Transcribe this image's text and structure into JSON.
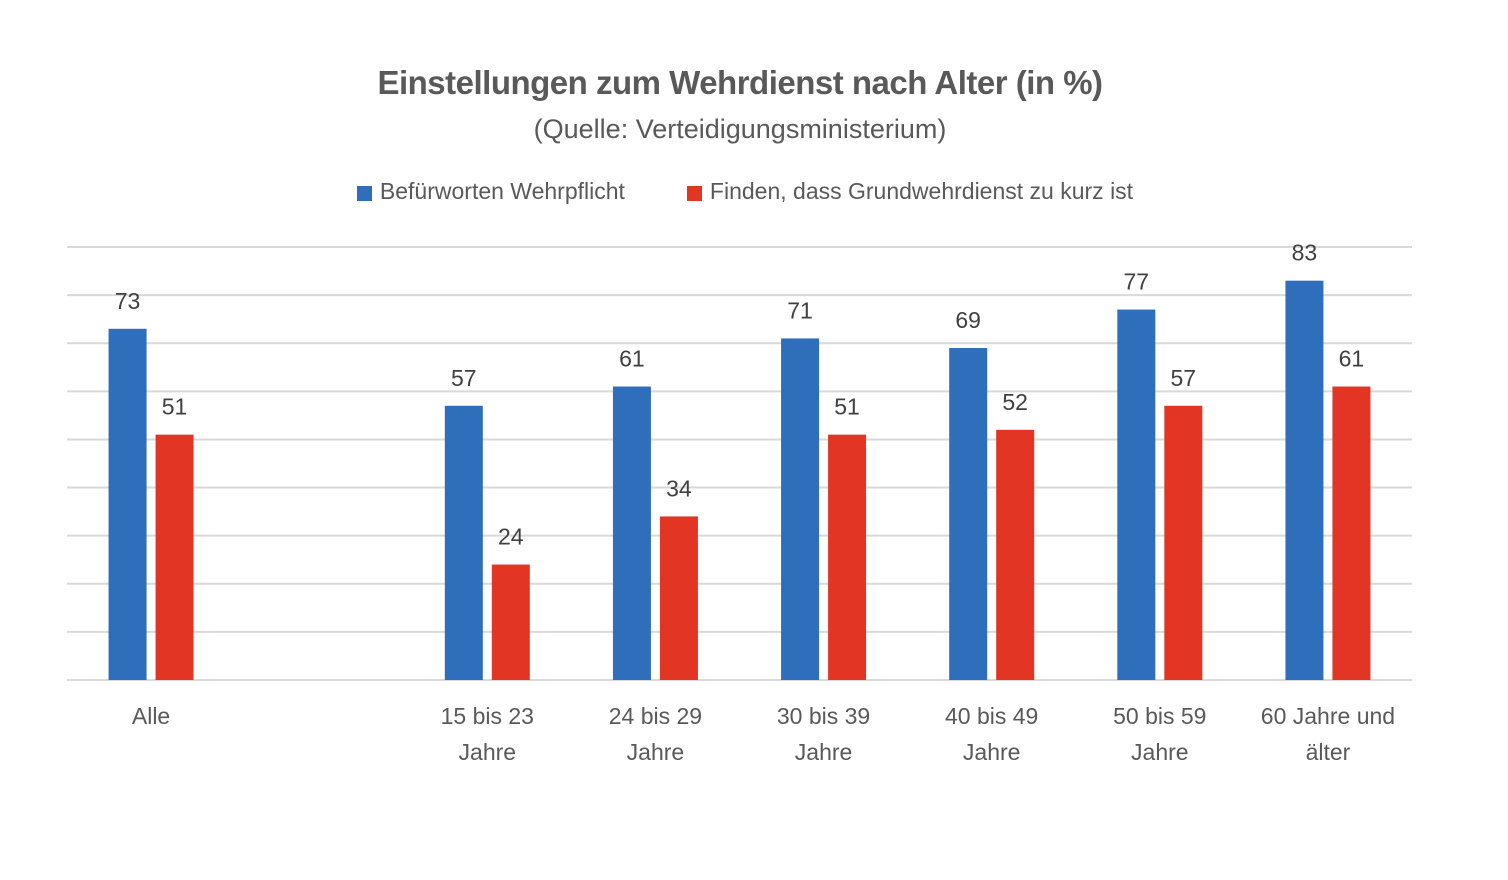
{
  "chart_data": {
    "type": "bar",
    "title": "Einstellungen zum Wehrdienst nach Alter (in %)",
    "subtitle": "(Quelle: Verteidigungsministerium)",
    "xlabel": "",
    "ylabel": "",
    "ylim": [
      0,
      90
    ],
    "grid": true,
    "grid_step": 10,
    "y_tick_labels_visible": false,
    "legend_position": "top",
    "categories": [
      [
        "Alle"
      ],
      [
        ""
      ],
      [
        "15 bis 23",
        "Jahre"
      ],
      [
        "24 bis 29",
        "Jahre"
      ],
      [
        "30 bis 39",
        "Jahre"
      ],
      [
        "40 bis 49",
        "Jahre"
      ],
      [
        "50 bis 59",
        "Jahre"
      ],
      [
        "60 Jahre und",
        "älter"
      ]
    ],
    "series": [
      {
        "name": "Befürworten Wehrpflicht",
        "color": "#2F6EBA",
        "values": [
          73,
          null,
          57,
          61,
          71,
          69,
          77,
          83
        ]
      },
      {
        "name": "Finden, dass Grundwehrdienst zu kurz ist",
        "color": "#E33524",
        "values": [
          51,
          null,
          24,
          34,
          51,
          52,
          57,
          61
        ]
      }
    ]
  }
}
